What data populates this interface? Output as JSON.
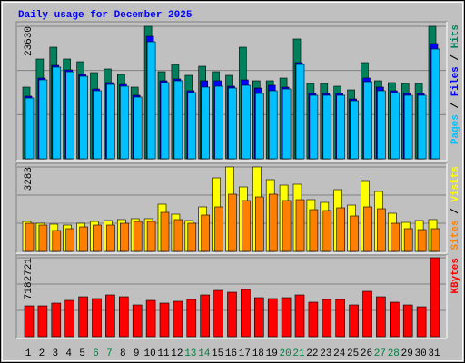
{
  "chart_data": {
    "type": "bar",
    "title": "Daily usage for December 2025",
    "categories": [
      "1",
      "2",
      "3",
      "4",
      "5",
      "6",
      "7",
      "8",
      "9",
      "10",
      "11",
      "12",
      "13",
      "14",
      "15",
      "16",
      "17",
      "18",
      "19",
      "20",
      "21",
      "22",
      "23",
      "24",
      "25",
      "26",
      "27",
      "28",
      "29",
      "30",
      "31"
    ],
    "category_colors": [
      "#000000",
      "#000000",
      "#000000",
      "#000000",
      "#000000",
      "#008040",
      "#008040",
      "#000000",
      "#000000",
      "#000000",
      "#000000",
      "#000000",
      "#008040",
      "#008040",
      "#000000",
      "#000000",
      "#000000",
      "#000000",
      "#000000",
      "#008040",
      "#008040",
      "#000000",
      "#000000",
      "#000000",
      "#000000",
      "#000000",
      "#008040",
      "#008040",
      "#000000",
      "#000000",
      "#000000"
    ],
    "separator": " / ",
    "panels": [
      {
        "ylim": [
          0,
          23630
        ],
        "yticks": [
          23630
        ],
        "series": [
          {
            "name": "Hits",
            "color": "#00805c",
            "values": [
              12786,
              17803,
              19907,
              17803,
              17318,
              15376,
              16023,
              15052,
              12786,
              23630,
              15537,
              16832,
              14890,
              16509,
              15537,
              14890,
              19907,
              13919,
              13919,
              14405,
              21364,
              13433,
              13433,
              12948,
              12301,
              17156,
              13919,
              13595,
              13433,
              13433,
              23630
            ]
          },
          {
            "name": "Files",
            "color": "#0000ff",
            "values": [
              11168,
              14405,
              16671,
              15861,
              15052,
              12463,
              13596,
              13272,
              11330,
              21850,
              13919,
              14243,
              12139,
              13919,
              13919,
              12948,
              14081,
              12624,
              13110,
              12786,
              17156,
              11654,
              11654,
              11654,
              10682,
              14405,
              12786,
              12139,
              11654,
              11654,
              20555
            ]
          },
          {
            "name": "Pages",
            "color": "#00c0ff",
            "values": [
              10844,
              14081,
              16347,
              15537,
              14728,
              12139,
              13272,
              12948,
              11006,
              20879,
              13595,
              13919,
              11815,
              12786,
              12948,
              12624,
              13110,
              11653,
              12139,
              12462,
              16832,
              11330,
              11330,
              11330,
              10358,
              13757,
              12139,
              11815,
              11330,
              11330,
              19584
            ]
          }
        ]
      },
      {
        "ylim": [
          0,
          3283
        ],
        "yticks": [
          3283
        ],
        "series": [
          {
            "name": "Visits",
            "color": "#ffff00",
            "values": [
              1165,
              1094,
              1059,
              1024,
              1094,
              1165,
              1200,
              1236,
              1271,
              1271,
              1836,
              1447,
              1200,
              1730,
              2859,
              3283,
              2506,
              3283,
              2789,
              2577,
              2612,
              2012,
              1906,
              2400,
              1800,
              2753,
              2330,
              1483,
              1130,
              1200,
              1236
            ]
          },
          {
            "name": "Sites",
            "color": "#ff8000",
            "values": [
              1094,
              1024,
              812,
              883,
              953,
              1024,
              1024,
              1094,
              1165,
              1165,
              1518,
              1236,
              1094,
              1412,
              1730,
              2224,
              1977,
              2118,
              2224,
              1977,
              2012,
              1624,
              1589,
              1694,
              1377,
              1730,
              1659,
              1094,
              883,
              847,
              883
            ]
          }
        ]
      },
      {
        "ylim": [
          0,
          7182721
        ],
        "yticks": [
          7182721
        ],
        "series": [
          {
            "name": "KBytes",
            "color": "#ff0000",
            "values": [
              2807040,
              2807040,
              3054720,
              3302400,
              3632640,
              3467520,
              3797760,
              3632640,
              2889600,
              3302400,
              3054720,
              3219840,
              3384960,
              3797760,
              4210560,
              4045440,
              4293120,
              3550080,
              3467520,
              3550080,
              3797760,
              3137280,
              3384960,
              3384960,
              2889600,
              4128000,
              3632640,
              3137280,
              2889600,
              2724480,
              7182721
            ]
          }
        ]
      }
    ]
  }
}
